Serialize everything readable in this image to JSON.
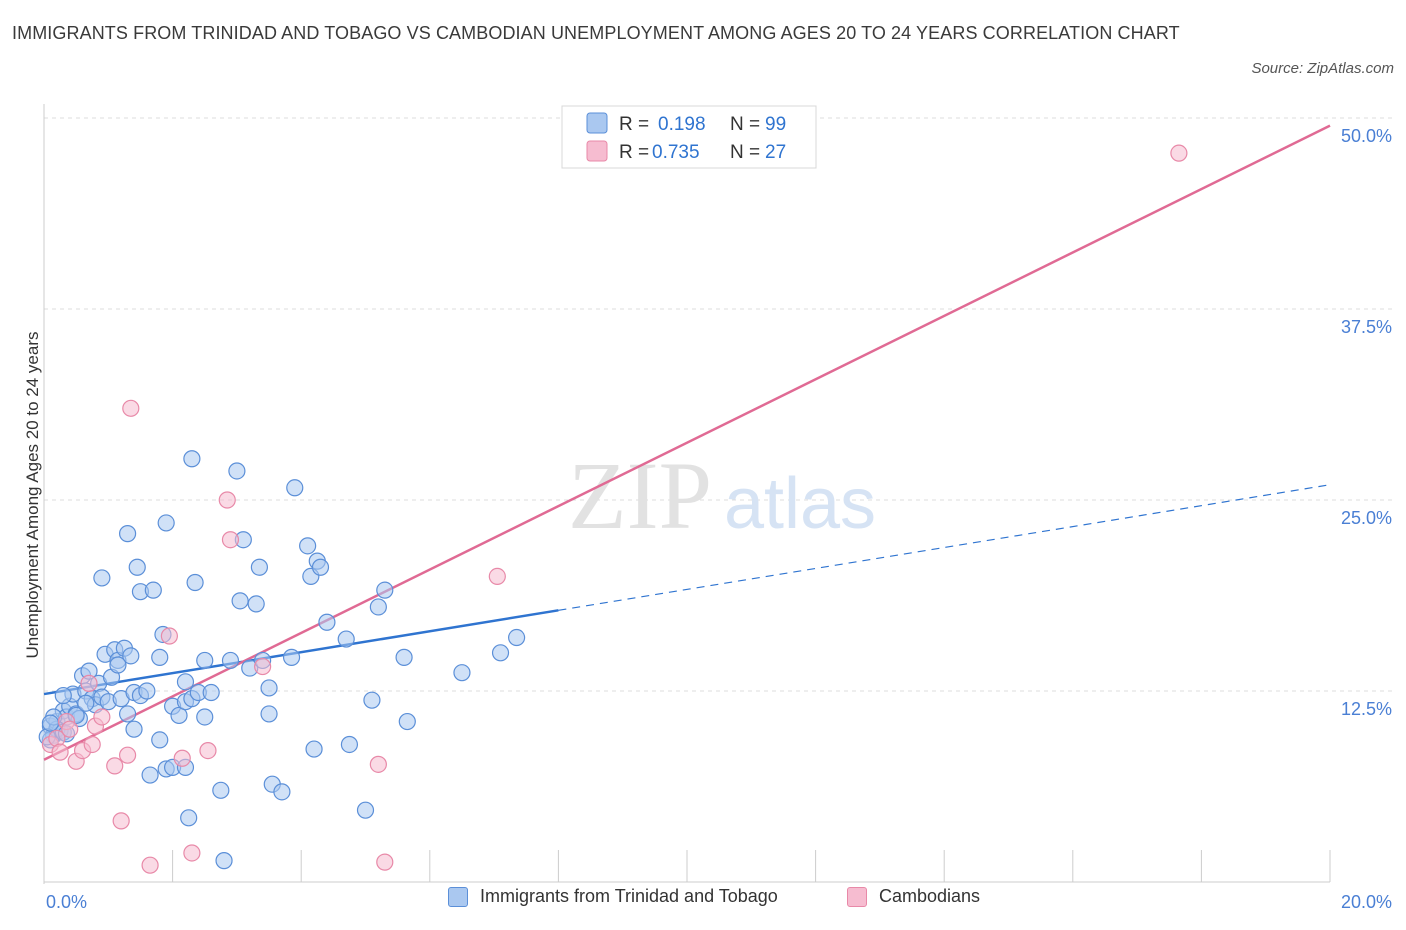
{
  "header": {
    "title": "IMMIGRANTS FROM TRINIDAD AND TOBAGO VS CAMBODIAN UNEMPLOYMENT AMONG AGES 20 TO 24 YEARS CORRELATION CHART",
    "source": "Source: ZipAtlas.com"
  },
  "watermark": {
    "zip": "ZIP",
    "atlas": "atlas"
  },
  "colors": {
    "blue_fill": "#aac8f0",
    "blue_stroke": "#5b8fd8",
    "blue_line": "#2f74d0",
    "pink_fill": "#f6bcd0",
    "pink_stroke": "#e889a8",
    "pink_line": "#e06a94",
    "axis_label": "#4a7fd4"
  },
  "legend": {
    "rows": [
      {
        "r_label": "R =",
        "r_value": "0.198",
        "n_label": "N =",
        "n_value": "99"
      },
      {
        "r_label": "R =",
        "r_value": "0.735",
        "n_label": "N =",
        "n_value": "27"
      }
    ]
  },
  "bottom_legend": {
    "items": [
      {
        "label": "Immigrants from Trinidad and Tobago"
      },
      {
        "label": "Cambodians"
      }
    ]
  },
  "chart_data": {
    "type": "scatter",
    "title": "IMMIGRANTS FROM TRINIDAD AND TOBAGO VS CAMBODIAN UNEMPLOYMENT AMONG AGES 20 TO 24 YEARS CORRELATION CHART",
    "xlabel": "",
    "ylabel": "Unemployment Among Ages 20 to 24 years",
    "xlim": [
      0,
      20
    ],
    "ylim": [
      0,
      50
    ],
    "x_tick_labels": [
      "0.0%",
      "20.0%"
    ],
    "y_tick_labels": [
      "12.5%",
      "25.0%",
      "37.5%",
      "50.0%"
    ],
    "y_ticks": [
      12.5,
      25.0,
      37.5,
      50.0
    ],
    "grid": true,
    "legend_position": "top-center",
    "series": [
      {
        "name": "Immigrants from Trinidad and Tobago",
        "r": 0.198,
        "n": 99,
        "trend": {
          "x0": 0,
          "y0": 12.3,
          "x_solid_end": 8.0,
          "x1": 20,
          "y1": 26.0
        },
        "points": [
          [
            0.1,
            10.2
          ],
          [
            0.15,
            9.6
          ],
          [
            0.2,
            10.5
          ],
          [
            0.25,
            9.9
          ],
          [
            0.3,
            11.2
          ],
          [
            0.1,
            9.3
          ],
          [
            0.35,
            10.8
          ],
          [
            0.4,
            11.5
          ],
          [
            0.2,
            10.0
          ],
          [
            0.3,
            9.8
          ],
          [
            0.45,
            12.3
          ],
          [
            0.5,
            11.0
          ],
          [
            0.55,
            10.7
          ],
          [
            0.6,
            13.5
          ],
          [
            0.65,
            12.5
          ],
          [
            0.7,
            13.8
          ],
          [
            0.75,
            12.0
          ],
          [
            0.8,
            11.6
          ],
          [
            0.85,
            13.0
          ],
          [
            0.9,
            12.1
          ],
          [
            0.95,
            14.9
          ],
          [
            1.0,
            11.8
          ],
          [
            1.05,
            13.4
          ],
          [
            1.1,
            15.2
          ],
          [
            1.15,
            14.5
          ],
          [
            1.2,
            12.0
          ],
          [
            1.25,
            15.3
          ],
          [
            1.3,
            11.0
          ],
          [
            1.35,
            14.8
          ],
          [
            1.4,
            10.0
          ],
          [
            1.15,
            14.2
          ],
          [
            0.9,
            19.9
          ],
          [
            1.3,
            22.8
          ],
          [
            1.4,
            12.4
          ],
          [
            1.5,
            12.2
          ],
          [
            1.6,
            12.5
          ],
          [
            1.5,
            19.0
          ],
          [
            1.45,
            20.6
          ],
          [
            1.65,
            7.0
          ],
          [
            1.7,
            19.1
          ],
          [
            1.8,
            14.7
          ],
          [
            1.85,
            16.2
          ],
          [
            1.8,
            9.3
          ],
          [
            1.9,
            7.4
          ],
          [
            1.9,
            23.5
          ],
          [
            2.0,
            11.5
          ],
          [
            2.1,
            10.9
          ],
          [
            2.2,
            13.1
          ],
          [
            2.2,
            11.8
          ],
          [
            2.3,
            12.0
          ],
          [
            2.0,
            7.5
          ],
          [
            2.2,
            7.5
          ],
          [
            2.25,
            4.2
          ],
          [
            2.3,
            27.7
          ],
          [
            2.35,
            19.6
          ],
          [
            2.4,
            12.4
          ],
          [
            2.5,
            14.5
          ],
          [
            2.5,
            10.8
          ],
          [
            2.6,
            12.4
          ],
          [
            2.75,
            6.0
          ],
          [
            2.8,
            1.4
          ],
          [
            2.9,
            14.5
          ],
          [
            3.0,
            26.9
          ],
          [
            3.05,
            18.4
          ],
          [
            3.1,
            22.4
          ],
          [
            3.2,
            14.0
          ],
          [
            3.3,
            18.2
          ],
          [
            3.35,
            20.6
          ],
          [
            3.4,
            14.5
          ],
          [
            3.5,
            12.7
          ],
          [
            3.5,
            11.0
          ],
          [
            3.55,
            6.4
          ],
          [
            3.7,
            5.9
          ],
          [
            3.85,
            14.7
          ],
          [
            3.9,
            25.8
          ],
          [
            4.1,
            22.0
          ],
          [
            4.15,
            20.0
          ],
          [
            4.2,
            8.7
          ],
          [
            4.25,
            21.0
          ],
          [
            4.3,
            20.6
          ],
          [
            4.4,
            17.0
          ],
          [
            4.7,
            15.9
          ],
          [
            4.75,
            9.0
          ],
          [
            5.0,
            4.7
          ],
          [
            5.1,
            11.9
          ],
          [
            5.3,
            19.1
          ],
          [
            5.6,
            14.7
          ],
          [
            5.65,
            10.5
          ],
          [
            6.5,
            13.7
          ],
          [
            5.2,
            18.0
          ],
          [
            7.1,
            15.0
          ],
          [
            7.35,
            16.0
          ],
          [
            0.3,
            12.2
          ],
          [
            0.5,
            10.9
          ],
          [
            0.15,
            10.8
          ],
          [
            0.35,
            9.7
          ],
          [
            0.65,
            11.7
          ],
          [
            0.05,
            9.5
          ],
          [
            0.1,
            10.4
          ]
        ]
      },
      {
        "name": "Cambodians",
        "r": 0.735,
        "n": 27,
        "trend": {
          "x0": 0,
          "y0": 8.0,
          "x1": 20,
          "y1": 49.5
        },
        "points": [
          [
            0.1,
            9.0
          ],
          [
            0.2,
            9.4
          ],
          [
            0.25,
            8.5
          ],
          [
            0.35,
            10.5
          ],
          [
            0.4,
            10.0
          ],
          [
            0.5,
            7.9
          ],
          [
            0.6,
            8.6
          ],
          [
            0.7,
            13.0
          ],
          [
            0.75,
            9.0
          ],
          [
            0.8,
            10.2
          ],
          [
            0.9,
            10.8
          ],
          [
            1.1,
            7.6
          ],
          [
            1.2,
            4.0
          ],
          [
            1.3,
            8.3
          ],
          [
            1.35,
            31.0
          ],
          [
            1.65,
            1.1
          ],
          [
            1.95,
            16.1
          ],
          [
            2.15,
            8.1
          ],
          [
            2.3,
            1.9
          ],
          [
            2.55,
            8.6
          ],
          [
            2.9,
            22.4
          ],
          [
            2.85,
            25.0
          ],
          [
            3.4,
            14.1
          ],
          [
            5.3,
            1.3
          ],
          [
            7.05,
            20.0
          ],
          [
            5.2,
            7.7
          ],
          [
            17.65,
            47.7
          ]
        ]
      }
    ]
  }
}
